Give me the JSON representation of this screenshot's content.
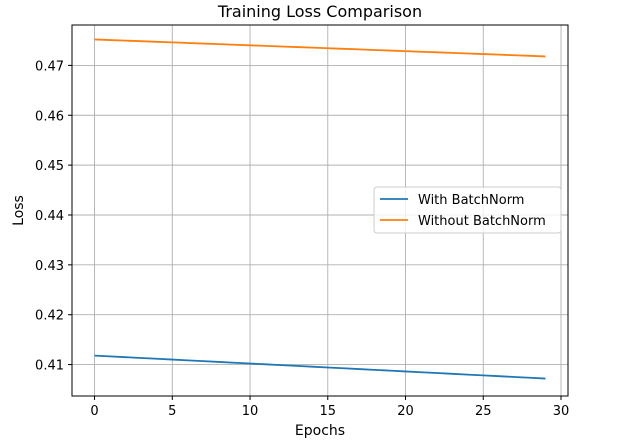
{
  "chart_data": {
    "type": "line",
    "title": "Training Loss Comparison",
    "xlabel": "Epochs",
    "ylabel": "Loss",
    "xlim": [
      -1.45,
      30.45
    ],
    "ylim": [
      0.4037,
      0.4781
    ],
    "xticks": [
      0,
      5,
      10,
      15,
      20,
      25,
      30
    ],
    "yticks": [
      0.41,
      0.42,
      0.43,
      0.44,
      0.45,
      0.46,
      0.47
    ],
    "ytick_labels": [
      "0.41",
      "0.42",
      "0.43",
      "0.44",
      "0.45",
      "0.46",
      "0.47"
    ],
    "grid": true,
    "legend_placement": "center-right",
    "series": [
      {
        "name": "With BatchNorm",
        "color": "#1f77b4",
        "x_start": 0,
        "x_end": 29,
        "y_start": 0.4118,
        "y_end": 0.4072
      },
      {
        "name": "Without BatchNorm",
        "color": "#ff7f0e",
        "x_start": 0,
        "x_end": 29,
        "y_start": 0.4752,
        "y_end": 0.4718
      }
    ]
  }
}
